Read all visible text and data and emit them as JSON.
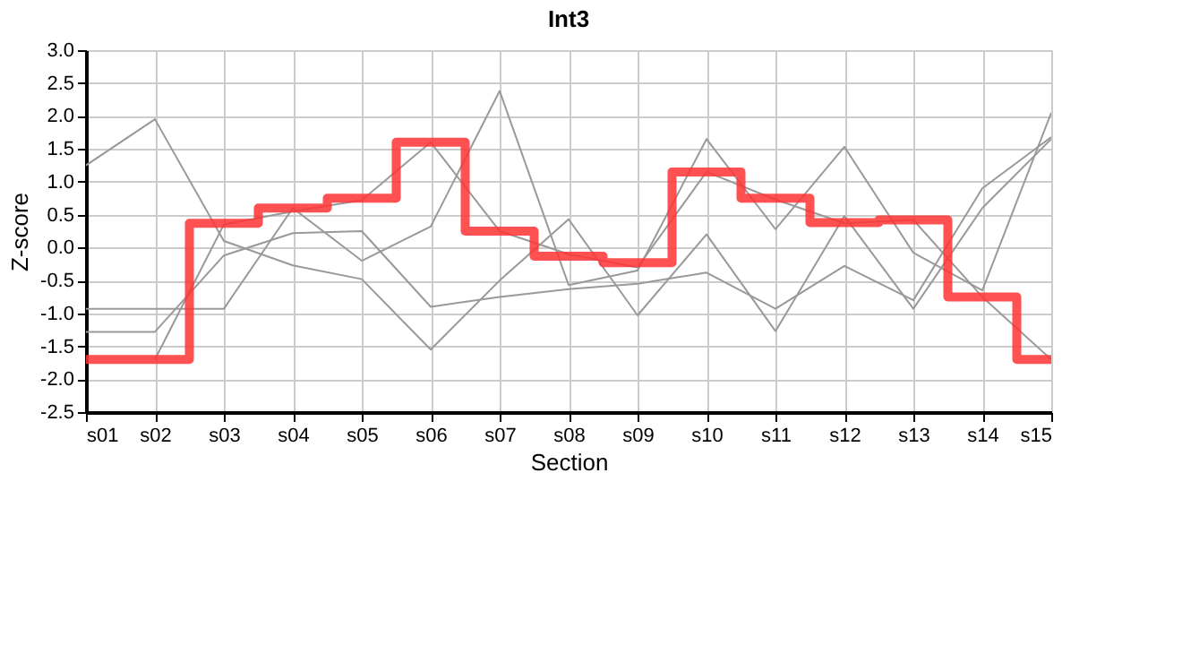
{
  "chart_data": {
    "type": "line",
    "title": "Int3",
    "xlabel": "Section",
    "ylabel": "Z-score",
    "categories": [
      "s01",
      "s02",
      "s03",
      "s04",
      "s05",
      "s06",
      "s07",
      "s08",
      "s09",
      "s10",
      "s11",
      "s12",
      "s13",
      "s14",
      "s15"
    ],
    "series": [
      {
        "color": "#999999",
        "values": [
          1.25,
          1.95,
          0.1,
          -0.27,
          -0.48,
          -1.55,
          -0.5,
          0.43,
          -1.03,
          0.2,
          -1.27,
          0.48,
          -0.93,
          0.6,
          1.65
        ]
      },
      {
        "color": "#999999",
        "values": [
          -1.28,
          -1.28,
          -0.12,
          0.22,
          0.25,
          -0.9,
          -0.75,
          -0.63,
          -0.55,
          -0.38,
          -0.93,
          -0.28,
          -0.8,
          0.9,
          1.68
        ]
      },
      {
        "color": "#999999",
        "values": [
          -0.93,
          -0.93,
          -0.93,
          0.6,
          -0.2,
          0.32,
          2.38,
          -0.57,
          -0.35,
          1.65,
          0.28,
          1.53,
          -0.08,
          -0.65,
          2.05
        ]
      },
      {
        "color": "#999999",
        "values": [
          null,
          -1.7,
          0.35,
          0.55,
          0.72,
          1.6,
          0.25,
          -0.1,
          -0.3,
          1.15,
          0.73,
          0.37,
          0.42,
          -0.75,
          -1.7
        ]
      },
      {
        "type": "step",
        "color": "#ff3333",
        "values": [
          -1.7,
          -1.7,
          0.37,
          0.6,
          0.75,
          1.6,
          0.25,
          -0.13,
          -0.23,
          1.15,
          0.75,
          0.38,
          0.42,
          -0.75,
          -1.7
        ]
      }
    ],
    "ylim": [
      -2.5,
      3.0
    ],
    "yticks": [
      {
        "value": -2.5,
        "label": "-2.5"
      },
      {
        "value": -2,
        "label": "-2.0"
      },
      {
        "value": -1.5,
        "label": "-1.5"
      },
      {
        "value": -1,
        "label": "-1.0"
      },
      {
        "value": -0.5,
        "label": "-0.5"
      },
      {
        "value": 0,
        "label": "0.0"
      },
      {
        "value": 0.5,
        "label": "0.5"
      },
      {
        "value": 1,
        "label": "1.0"
      },
      {
        "value": 1.5,
        "label": "1.5"
      },
      {
        "value": 2,
        "label": "2.0"
      },
      {
        "value": 2.5,
        "label": "2.5"
      },
      {
        "value": 3,
        "label": "3.0"
      }
    ],
    "grid": true
  }
}
